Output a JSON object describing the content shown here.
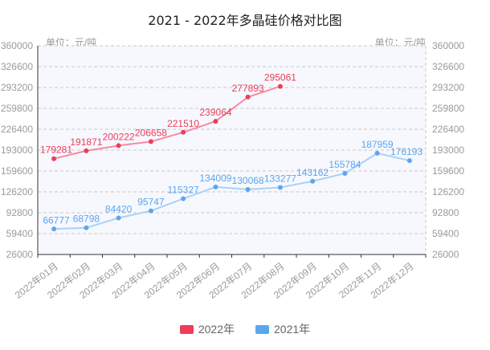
{
  "chart_data": {
    "type": "line",
    "title": "2021 - 2022年多晶硅价格对比图",
    "unit_label_left": "单位：元/吨",
    "unit_label_right": "单位：元/吨",
    "categories": [
      "2022年01月",
      "2022年02月",
      "2022年03月",
      "2022年04月",
      "2022年05月",
      "2022年06月",
      "2022年07月",
      "2022年08月",
      "2022年09月",
      "2022年10月",
      "2022年11月",
      "2022年12月"
    ],
    "y_ticks": [
      360000,
      326600,
      293200,
      259800,
      226400,
      193000,
      159600,
      126200,
      92800,
      59400,
      26000
    ],
    "ylim": [
      26000,
      360000
    ],
    "grid": "dashed-horizontal",
    "legend_position": "bottom-center",
    "series": [
      {
        "name": "2022年",
        "color": "#ee3d5b",
        "line_color": "#f68ba1",
        "values": [
          179281,
          191871,
          200222,
          206658,
          221510,
          239064,
          277893,
          295061
        ]
      },
      {
        "name": "2021年",
        "color": "#5ca6ee",
        "line_color": "#a9d1f8",
        "values": [
          66777,
          68798,
          84420,
          95747,
          115327,
          134009,
          130068,
          133277,
          143162,
          155784,
          187959,
          176193
        ]
      }
    ],
    "colors": {
      "plot_background": "#f6f8fd",
      "gridline": "#c9c9c9",
      "axis_line": "#333333",
      "tick_text": "#9a9a9a",
      "title_text": "#222222",
      "legend_text": "#666666"
    }
  }
}
